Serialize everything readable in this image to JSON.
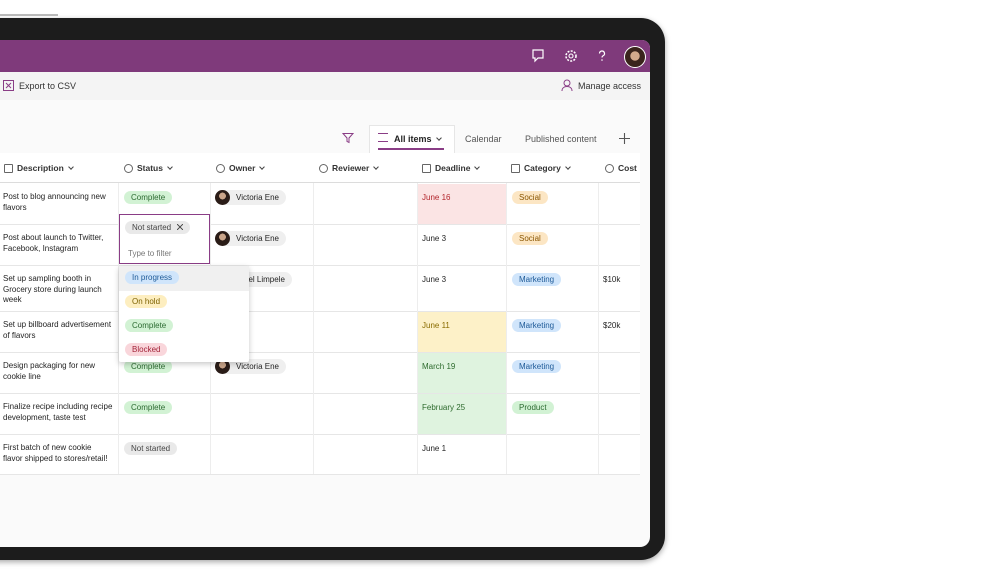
{
  "header": {
    "export": "Export to CSV",
    "manage": "Manage access"
  },
  "views": {
    "tabs": [
      "All items",
      "Calendar",
      "Published content"
    ]
  },
  "table": {
    "columns": [
      "Description",
      "Status",
      "Owner",
      "Reviewer",
      "Deadline",
      "Category",
      "Cost"
    ],
    "rows": [
      {
        "description": "Post to blog announcing new flavors",
        "status": {
          "text": "Complete",
          "tone": "green"
        },
        "owner": {
          "name": "Victoria Ene",
          "avatar": true
        },
        "deadline": {
          "text": "June 16",
          "tone": "red"
        },
        "category": {
          "text": "Social",
          "tone": "orange"
        }
      },
      {
        "description": "Post about launch to Twitter, Facebook, Instagram",
        "owner": {
          "name": "Victoria Ene",
          "avatar": true
        },
        "deadline": {
          "text": "June 3"
        },
        "category": {
          "text": "Social",
          "tone": "orange"
        }
      },
      {
        "description": "Set up sampling booth in Grocery store during launch week",
        "owner": {
          "name": "uel Limpele",
          "avatar": false
        },
        "deadline": {
          "text": "June 3"
        },
        "category": {
          "text": "Marketing",
          "tone": "blue"
        },
        "cost": "$10k"
      },
      {
        "description": "Set up billboard advertisement of flavors",
        "deadline": {
          "text": "June 11",
          "tone": "yellow"
        },
        "category": {
          "text": "Marketing",
          "tone": "blue"
        },
        "cost": "$20k"
      },
      {
        "description": "Design packaging for new cookie line",
        "status": {
          "text": "Complete",
          "tone": "green"
        },
        "owner": {
          "name": "Victoria Ene",
          "avatar": true
        },
        "deadline": {
          "text": "March 19",
          "tone": "green"
        },
        "category": {
          "text": "Marketing",
          "tone": "blue"
        }
      },
      {
        "description": "Finalize recipe including recipe development, taste test",
        "status": {
          "text": "Complete",
          "tone": "green"
        },
        "deadline": {
          "text": "February 25",
          "tone": "green"
        },
        "category": {
          "text": "Product",
          "tone": "green"
        }
      },
      {
        "description": "First batch of new cookie flavor shipped to stores/retail!",
        "status": {
          "text": "Not started",
          "tone": "gray"
        },
        "deadline": {
          "text": "June 1"
        }
      }
    ]
  },
  "status_editor": {
    "selected": "Not started",
    "placeholder": "Type to filter",
    "options": [
      {
        "text": "In progress",
        "tone": "blue"
      },
      {
        "text": "On hold",
        "tone": "yellow"
      },
      {
        "text": "Complete",
        "tone": "green"
      },
      {
        "text": "Blocked",
        "tone": "red"
      }
    ]
  }
}
